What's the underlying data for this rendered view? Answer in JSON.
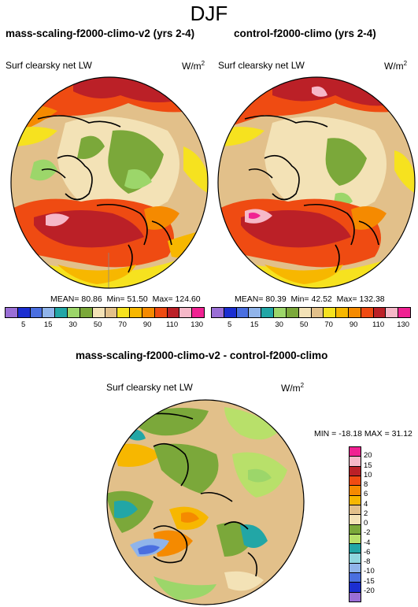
{
  "title": "DJF",
  "panels": [
    {
      "title": "mass-scaling-f2000-climo-v2 (yrs 2-4)",
      "variable": "Surf clearsky net LW",
      "units": "W/m",
      "units_exp": "2",
      "mean_label": "MEAN=",
      "mean": "80.86",
      "min_label": "Min=",
      "min": "51.50",
      "max_label": "Max=",
      "max": "124.60"
    },
    {
      "title": "control-f2000-climo (yrs 2-4)",
      "variable": "Surf clearsky net LW",
      "units": "W/m",
      "units_exp": "2",
      "mean_label": "MEAN=",
      "mean": "80.39",
      "min_label": "Min=",
      "min": "42.52",
      "max_label": "Max=",
      "max": "132.38"
    }
  ],
  "colorbar_top": {
    "colors": [
      "#9a6fd6",
      "#1b2ed1",
      "#4a6fe0",
      "#90b4ea",
      "#22a6a6",
      "#9cd66a",
      "#7ba83a",
      "#f3e2b6",
      "#e2c08a",
      "#f6e21f",
      "#f7b700",
      "#f58a00",
      "#ef4b12",
      "#bb2027",
      "#f6b8c8",
      "#f02292"
    ],
    "labels": [
      "5",
      "15",
      "30",
      "50",
      "70",
      "90",
      "110",
      "130"
    ]
  },
  "diff_panel": {
    "title": "mass-scaling-f2000-climo-v2 - control-f2000-climo",
    "variable": "Surf clearsky net LW",
    "units": "W/m",
    "units_exp": "2",
    "stats": "MIN = -18.18 MAX =  31.12"
  },
  "colorbar_diff": {
    "colors": [
      "#f02292",
      "#f6b8c8",
      "#bb2027",
      "#ef4b12",
      "#f58a00",
      "#f7b700",
      "#e2c08a",
      "#f3e2b6",
      "#7ba83a",
      "#b8e06a",
      "#22a6a6",
      "#90d6df",
      "#90b4ea",
      "#4a6fe0",
      "#1b2ed1",
      "#9a6fd6"
    ],
    "labels": [
      "20",
      "15",
      "10",
      "8",
      "6",
      "4",
      "2",
      "0",
      "-2",
      "-4",
      "-6",
      "-8",
      "-10",
      "-15",
      "-20"
    ]
  }
}
